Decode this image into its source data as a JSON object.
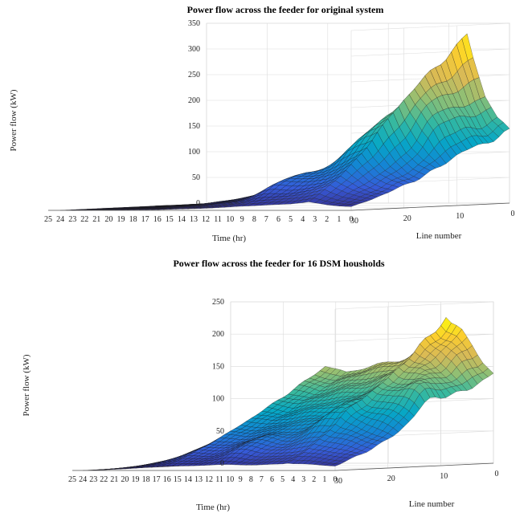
{
  "chart_data": [
    {
      "type": "surface",
      "title": "Power flow across the feeder for original system",
      "xlabel": "Time (hr)",
      "ylabel": "Line number",
      "zlabel": "Power flow (kW)",
      "xlim": [
        0,
        25
      ],
      "ylim": [
        0,
        30
      ],
      "zlim": [
        0,
        350
      ],
      "x_ticks": [
        "25",
        "24",
        "23",
        "22",
        "21",
        "20",
        "19",
        "18",
        "17",
        "16",
        "15",
        "14",
        "13",
        "12",
        "11",
        "10",
        "9",
        "8",
        "7",
        "6",
        "5",
        "4",
        "3",
        "2",
        "1",
        "0"
      ],
      "y_ticks": [
        "30",
        "20",
        "10",
        "0"
      ],
      "z_ticks": [
        "0",
        "50",
        "100",
        "150",
        "200",
        "250",
        "300",
        "350"
      ],
      "grid": true,
      "colormap": "parula",
      "peak_power_kW": 330,
      "peak_time_hr": 3.5,
      "profile_at_line_0": {
        "time_hr": [
          0,
          1,
          2,
          3,
          3.5,
          4,
          5,
          6,
          7,
          8,
          9,
          10,
          11,
          12,
          13,
          14,
          15,
          16,
          17,
          18,
          19,
          20,
          21,
          22,
          23,
          24
        ],
        "power_kW": [
          140,
          165,
          210,
          285,
          330,
          300,
          255,
          230,
          205,
          175,
          150,
          120,
          100,
          80,
          65,
          50,
          40,
          30,
          20,
          15,
          10,
          6,
          4,
          2,
          1,
          0
        ]
      }
    },
    {
      "type": "surface",
      "title": "Power flow across the feeder for 16 DSM housholds",
      "xlabel": "Time (hr)",
      "ylabel": "Line number",
      "zlabel": "Power flow (kW)",
      "xlim": [
        0,
        25
      ],
      "ylim": [
        0,
        30
      ],
      "zlim": [
        0,
        250
      ],
      "x_ticks": [
        "25",
        "24",
        "23",
        "22",
        "21",
        "20",
        "19",
        "18",
        "17",
        "16",
        "15",
        "14",
        "13",
        "12",
        "11",
        "10",
        "9",
        "8",
        "7",
        "6",
        "5",
        "4",
        "3",
        "2",
        "1",
        "0"
      ],
      "y_ticks": [
        "30",
        "20",
        "10",
        "0"
      ],
      "z_ticks": [
        "0",
        "50",
        "100",
        "150",
        "200",
        "250"
      ],
      "grid": true,
      "colormap": "parula",
      "peak_power_kW": 225,
      "peak_time_hr": 4.5,
      "profile_at_line_0": {
        "time_hr": [
          0,
          1,
          2,
          3,
          4,
          4.5,
          5,
          6,
          7,
          8,
          9,
          10,
          11,
          12,
          13,
          14,
          15,
          16,
          17,
          18,
          19,
          20,
          21,
          22,
          23,
          24
        ],
        "power_kW": [
          140,
          160,
          185,
          205,
          215,
          225,
          200,
          185,
          175,
          165,
          160,
          158,
          155,
          150,
          145,
          140,
          145,
          150,
          120,
          95,
          70,
          50,
          35,
          20,
          8,
          0
        ]
      }
    }
  ]
}
